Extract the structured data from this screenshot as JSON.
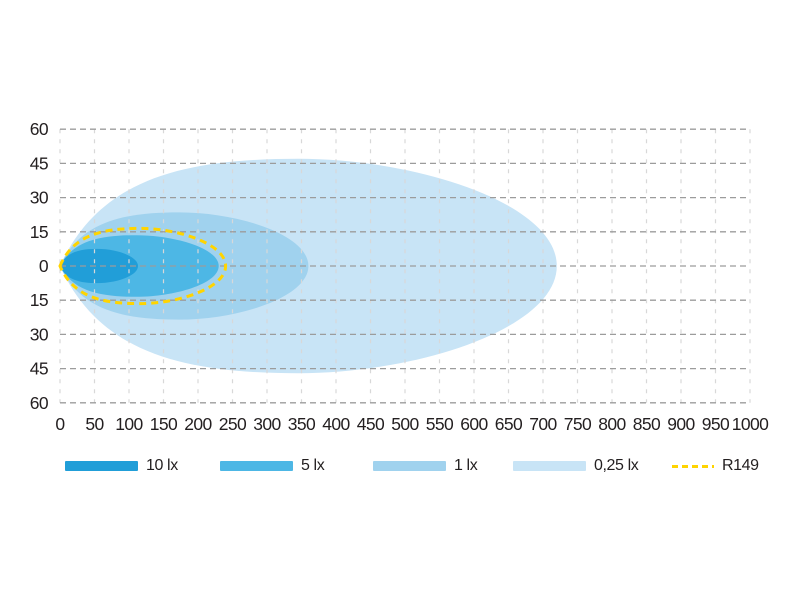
{
  "chart_data": {
    "type": "area",
    "title": "",
    "xlabel": "",
    "ylabel": "",
    "xlim": [
      0,
      1000
    ],
    "ylim": [
      -60,
      60
    ],
    "x_ticks": [
      0,
      50,
      100,
      150,
      200,
      250,
      300,
      350,
      400,
      450,
      500,
      550,
      600,
      650,
      700,
      750,
      800,
      850,
      900,
      950,
      1000
    ],
    "y_ticks": [
      60,
      45,
      30,
      15,
      0,
      -15,
      -30,
      -45,
      -60
    ],
    "y_tick_labels": [
      "60",
      "45",
      "30",
      "15",
      "0",
      "15",
      "30",
      "45",
      "60"
    ],
    "grid": true,
    "legend_position": "bottom",
    "zones": [
      {
        "label": "10 lx",
        "lux": 10,
        "color": "#219ED8",
        "reach_m": 113,
        "half_width_m": 7.5
      },
      {
        "label": "5 lx",
        "lux": 5,
        "color": "#4DB7E5",
        "reach_m": 230,
        "half_width_m": 13.5
      },
      {
        "label": "1 lx",
        "lux": 1,
        "color": "#A0D2EE",
        "reach_m": 360,
        "half_width_m": 23.5
      },
      {
        "label": "0,25 lx",
        "lux": 0.25,
        "color": "#C8E4F6",
        "reach_m": 720,
        "half_width_m": 47
      }
    ],
    "reference_outline": {
      "label": "R149",
      "color": "#FFD400",
      "style": "dashed",
      "reach_m": 240,
      "half_width_m": 16.5
    }
  },
  "colors": {
    "background": "#ffffff",
    "grid_horizontal": "#9c9c9c",
    "grid_vertical": "#d8d8d8",
    "text": "#231f20"
  }
}
